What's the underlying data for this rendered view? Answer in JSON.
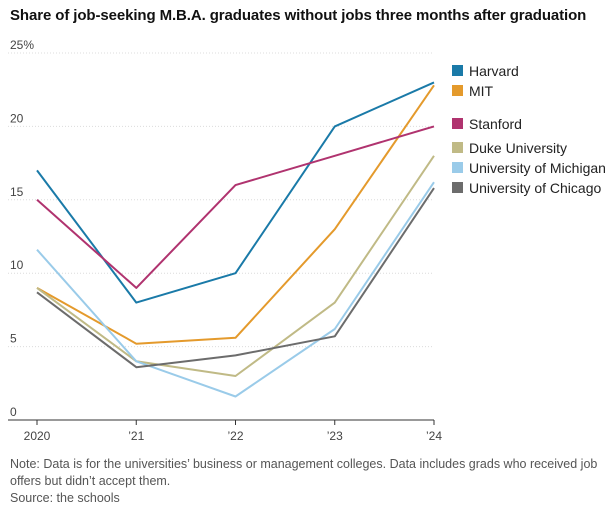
{
  "chart_data": {
    "type": "line",
    "title": "Share of job-seeking M.B.A. graduates without jobs three months after graduation",
    "x": [
      2020,
      2021,
      2022,
      2023,
      2024
    ],
    "x_tick_labels": [
      "2020",
      "’21",
      "’22",
      "’23",
      "’24"
    ],
    "ylim": [
      0,
      25
    ],
    "y_ticks": [
      0,
      5,
      10,
      15,
      20,
      25
    ],
    "y_tick_labels": [
      "0",
      "5",
      "10",
      "15",
      "20",
      "25%"
    ],
    "xlabel": "",
    "ylabel": "",
    "grid": true,
    "legend_position": "right",
    "series": [
      {
        "name": "Harvard",
        "color": "#1a7aa8",
        "values": [
          17,
          8,
          10,
          20,
          23
        ]
      },
      {
        "name": "MIT",
        "color": "#e49a2c",
        "values": [
          9,
          5.2,
          5.6,
          13,
          22.8
        ]
      },
      {
        "name": "Stanford",
        "color": "#b0336f",
        "values": [
          15,
          9,
          16,
          18,
          20
        ]
      },
      {
        "name": "Duke University",
        "color": "#c0ba86",
        "values": [
          9,
          4,
          3,
          8,
          18
        ]
      },
      {
        "name": "University of Michigan",
        "color": "#9acbe9",
        "values": [
          11.6,
          4,
          1.6,
          6.2,
          16.2
        ]
      },
      {
        "name": "University of Chicago",
        "color": "#6c6c6c",
        "values": [
          8.7,
          3.6,
          4.4,
          5.7,
          15.8
        ]
      }
    ]
  },
  "note": {
    "text": "Note: Data is for the universities’ business or management colleges. Data includes grads who received job offers but didn’t accept them.",
    "source": "Source: the schools"
  }
}
